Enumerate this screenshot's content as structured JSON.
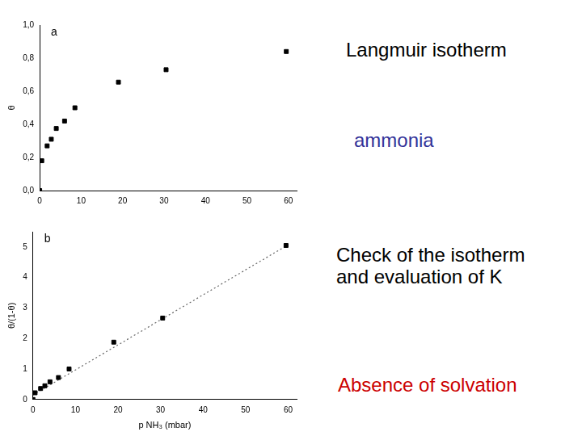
{
  "chart_data": [
    {
      "type": "scatter",
      "title": "a",
      "y_label": "θ",
      "xlim": [
        0,
        62
      ],
      "xticks": [
        0,
        10,
        20,
        30,
        40,
        50,
        60
      ],
      "ylim": [
        0,
        1.0
      ],
      "yticks": [
        {
          "value": 0,
          "label": "0,0"
        },
        {
          "value": 0.2,
          "label": "0,2"
        },
        {
          "value": 0.4,
          "label": "0,4"
        },
        {
          "value": 0.6,
          "label": "0,6"
        },
        {
          "value": 0.8,
          "label": "0,8"
        },
        {
          "value": 1.0,
          "label": "1,0"
        }
      ],
      "grid": false,
      "series": [
        {
          "color": "#000000",
          "marker": "square",
          "x": [
            0,
            0.5,
            1.8,
            2.8,
            4,
            6,
            8.5,
            19,
            30.5,
            59.5
          ],
          "values": [
            0,
            0.18,
            0.27,
            0.31,
            0.375,
            0.42,
            0.5,
            0.655,
            0.73,
            0.84
          ]
        }
      ]
    },
    {
      "type": "scatter",
      "title": "b",
      "x_label": "p NH₃ (mbar)",
      "y_label": "θ/(1-θ)",
      "xlim": [
        0,
        62
      ],
      "xticks": [
        0,
        10,
        20,
        30,
        40,
        50,
        60
      ],
      "ylim": [
        0,
        5.5
      ],
      "yticks": [
        0,
        1,
        2,
        3,
        4,
        5
      ],
      "grid": false,
      "series": [
        {
          "type": "line",
          "line_style": "dotted",
          "color": "#666666",
          "x": [
            0,
            59.5
          ],
          "values": [
            0.15,
            5.03
          ]
        },
        {
          "color": "#000000",
          "marker": "square",
          "x": [
            0,
            0.5,
            1.8,
            2.8,
            4,
            6,
            8.5,
            19,
            30.5,
            59.5
          ],
          "values": [
            0,
            0.22,
            0.36,
            0.45,
            0.58,
            0.72,
            1.0,
            1.88,
            2.67,
            5.05
          ]
        }
      ]
    }
  ],
  "notes": [
    {
      "lines": [
        "Langmuir isotherm"
      ],
      "color": "#000000"
    },
    {
      "lines": [
        "ammonia"
      ],
      "color": "#333399"
    },
    {
      "lines": [
        "Check of the isotherm",
        "and evaluation of K"
      ],
      "color": "#000000"
    },
    {
      "lines": [
        "Absence of solvation"
      ],
      "color": "#cc0000"
    }
  ]
}
